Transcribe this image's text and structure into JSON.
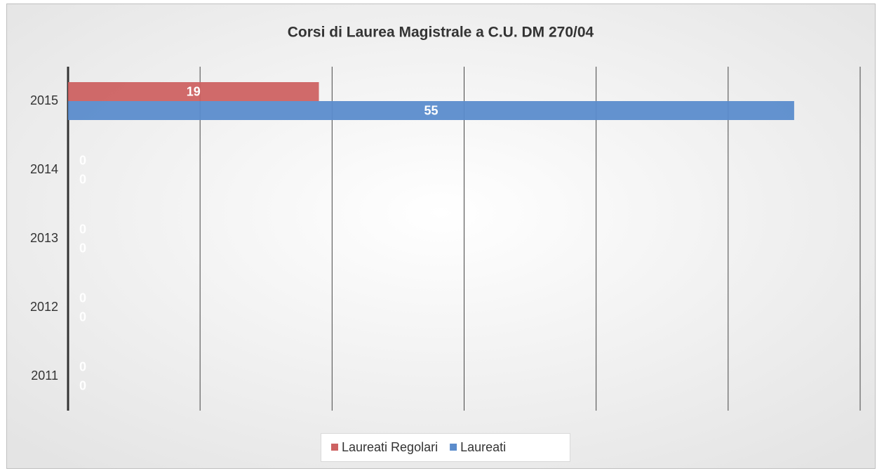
{
  "chart_data": {
    "type": "hbar",
    "title": "Corsi di Laurea Magistrale a C.U. DM 270/04",
    "categories": [
      "2015",
      "2014",
      "2013",
      "2012",
      "2011"
    ],
    "series": [
      {
        "name": "Laureati Regolari",
        "color": "#cd6262",
        "values": [
          19,
          0,
          0,
          0,
          0
        ]
      },
      {
        "name": "Laureati",
        "color": "#5b8ccc",
        "values": [
          55,
          0,
          0,
          0,
          0
        ]
      }
    ],
    "xlim": [
      0,
      60
    ],
    "xticks": [
      0,
      10,
      20,
      30,
      40,
      50,
      60
    ],
    "grid": true,
    "legend": "bottom"
  }
}
